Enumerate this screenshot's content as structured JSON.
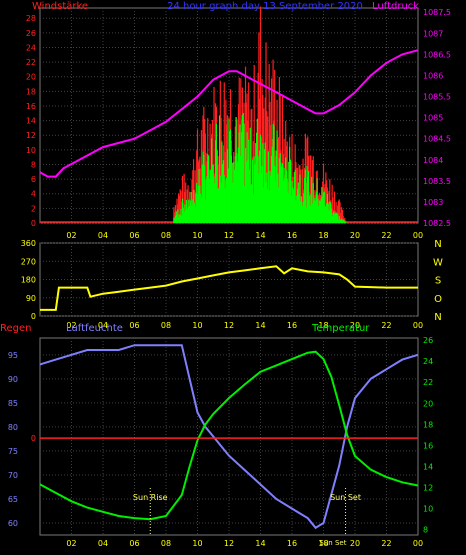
{
  "colors": {
    "wind_speed": "#ff2020",
    "wind_gust": "#00ff00",
    "pressure": "#ff00ff",
    "direction": "#ffff00",
    "humidity": "#8080ff",
    "temperature": "#00ee00",
    "rain": "#ff2020",
    "axis_left_top": "#ff2020",
    "axis_right_top": "#ff00ff",
    "grid": "#404040",
    "ticks_x": "#ffff00"
  },
  "chart_data": [
    {
      "type": "line",
      "panel": "top",
      "title": "24 hour graph day 13 September 2020",
      "left_label": "Windstärke",
      "right_label": "Luftdruck",
      "y_left_ticks": [
        "0",
        "2",
        "4",
        "6",
        "8",
        "10",
        "12",
        "14",
        "16",
        "18",
        "20",
        "22",
        "24",
        "26",
        "28"
      ],
      "y_left_lim": [
        0,
        29.4
      ],
      "y_right_ticks": [
        "1082.5",
        "1083",
        "1083.5",
        "1084",
        "1084.5",
        "1085",
        "1085.5",
        "1086",
        "1086.5",
        "1087",
        "1087.5"
      ],
      "y_right_lim": [
        1082.5,
        1087.6
      ],
      "x_ticks": [
        "02",
        "04",
        "06",
        "08",
        "10",
        "12",
        "14",
        "16",
        "18",
        "20",
        "22",
        "00"
      ],
      "x_lim": [
        0,
        24
      ],
      "series": [
        {
          "name": "Luftdruck",
          "x": [
            0,
            0.5,
            1,
            1.5,
            2,
            3,
            4,
            5,
            6,
            7,
            8,
            9,
            10,
            11,
            12,
            12.5,
            13,
            14,
            15,
            16,
            17,
            17.5,
            18,
            18.5,
            19,
            20,
            21,
            22,
            23,
            24
          ],
          "values": [
            1083.7,
            1083.6,
            1083.6,
            1083.8,
            1083.9,
            1084.1,
            1084.3,
            1084.4,
            1084.5,
            1084.7,
            1084.9,
            1085.2,
            1085.5,
            1085.9,
            1086.1,
            1086.1,
            1086.0,
            1085.8,
            1085.6,
            1085.4,
            1085.2,
            1085.1,
            1085.1,
            1085.2,
            1085.3,
            1085.6,
            1086.0,
            1086.3,
            1086.5,
            1086.6
          ]
        },
        {
          "name": "Wind",
          "x": [
            8.5,
            9,
            9.5,
            10,
            10.5,
            11,
            11.5,
            12,
            12.5,
            13,
            13.5,
            14,
            14.5,
            15,
            15.5,
            16,
            16.5,
            17,
            17.5,
            18,
            18.5,
            19,
            19.5
          ],
          "values": [
            1,
            3,
            4,
            7,
            10,
            12,
            16,
            16,
            15,
            14,
            12,
            16,
            14,
            12,
            10,
            10,
            8,
            7,
            6,
            5,
            3,
            1,
            0
          ]
        },
        {
          "name": "Gust",
          "x": [
            8.5,
            9,
            9.5,
            10,
            10.5,
            11,
            11.5,
            12,
            12.5,
            13,
            13.5,
            14,
            14.5,
            15,
            15.5,
            16,
            16.5,
            17,
            17.5,
            18,
            18.5,
            19,
            19.5
          ],
          "values": [
            3,
            6,
            7,
            12,
            16,
            18,
            20,
            21,
            19,
            20,
            18,
            29,
            22,
            22,
            15,
            12,
            10,
            12,
            10,
            8,
            6,
            3,
            0
          ]
        }
      ]
    },
    {
      "type": "line",
      "panel": "middle",
      "y_ticks": [
        "0",
        "90",
        "180",
        "270",
        "360"
      ],
      "y_lim": [
        0,
        360
      ],
      "side_labels": [
        "N",
        "W",
        "S",
        "O",
        "N"
      ],
      "x_ticks": [
        "02",
        "04",
        "06",
        "08",
        "10",
        "12",
        "14",
        "16",
        "18",
        "20",
        "22",
        "00"
      ],
      "x_lim": [
        0,
        24
      ],
      "series": [
        {
          "name": "Windrichtung",
          "x": [
            0,
            1,
            1.2,
            3,
            3.2,
            4,
            5,
            6,
            7,
            8,
            9,
            10,
            11,
            12,
            13,
            14,
            15,
            15.5,
            16,
            17,
            18,
            19,
            19.5,
            20,
            22,
            24
          ],
          "values": [
            30,
            30,
            140,
            140,
            95,
            110,
            120,
            130,
            140,
            150,
            170,
            185,
            200,
            215,
            225,
            235,
            245,
            210,
            235,
            220,
            215,
            205,
            180,
            145,
            140,
            140
          ]
        }
      ]
    },
    {
      "type": "line",
      "panel": "bottom",
      "left_label": "Regen",
      "humidity_label": "Luftfeuchte",
      "right_label": "Temperatur",
      "rain_ticks": [
        "0"
      ],
      "humidity_ticks": [
        "60",
        "65",
        "70",
        "75",
        "80",
        "85",
        "90",
        "95"
      ],
      "humidity_lim": [
        57.5,
        98.5
      ],
      "temperature_ticks": [
        "8",
        "10",
        "12",
        "14",
        "16",
        "18",
        "20",
        "22",
        "24",
        "26"
      ],
      "temperature_lim": [
        7.5,
        26.2
      ],
      "x_ticks": [
        "02",
        "04",
        "06",
        "08",
        "10",
        "12",
        "14",
        "16",
        "18",
        "20",
        "22",
        "00"
      ],
      "x_lim": [
        0,
        24
      ],
      "annotations": [
        {
          "text": "Sun Rise",
          "x": 7.0
        },
        {
          "text": "Sun Set",
          "x": 19.4
        },
        {
          "text": "Sun Set",
          "x": 18.6
        }
      ],
      "series": [
        {
          "name": "Luftfeuchte",
          "x": [
            0,
            1,
            2,
            3,
            4,
            5,
            6,
            7,
            8,
            9,
            9.5,
            10,
            10.5,
            11,
            12,
            13,
            14,
            15,
            16,
            17,
            17.5,
            18,
            18.5,
            19,
            19.5,
            20,
            21,
            22,
            23,
            24
          ],
          "values": [
            93,
            94,
            95,
            96,
            96,
            96,
            97,
            97,
            97,
            97,
            90,
            83,
            80,
            78,
            74,
            71,
            68,
            65,
            63,
            61,
            59,
            60,
            66,
            72,
            80,
            86,
            90,
            92,
            94,
            95
          ]
        },
        {
          "name": "Temperatur",
          "x": [
            0,
            1,
            2,
            3,
            4,
            5,
            6,
            7,
            8,
            9,
            9.5,
            10,
            10.5,
            11,
            12,
            13,
            14,
            15,
            16,
            17,
            17.5,
            18,
            18.5,
            19,
            19.5,
            20,
            21,
            22,
            23,
            24
          ],
          "values": [
            12.3,
            11.5,
            10.7,
            10.1,
            9.7,
            9.3,
            9.1,
            9.0,
            9.3,
            11.3,
            14.0,
            16.5,
            18.0,
            19.0,
            20.5,
            21.8,
            23.0,
            23.6,
            24.2,
            24.8,
            24.9,
            24.2,
            22.5,
            19.8,
            17.0,
            15.0,
            13.7,
            13.0,
            12.5,
            12.2
          ]
        },
        {
          "name": "Regen",
          "x": [
            0,
            24
          ],
          "values": [
            0,
            0
          ]
        }
      ]
    }
  ]
}
